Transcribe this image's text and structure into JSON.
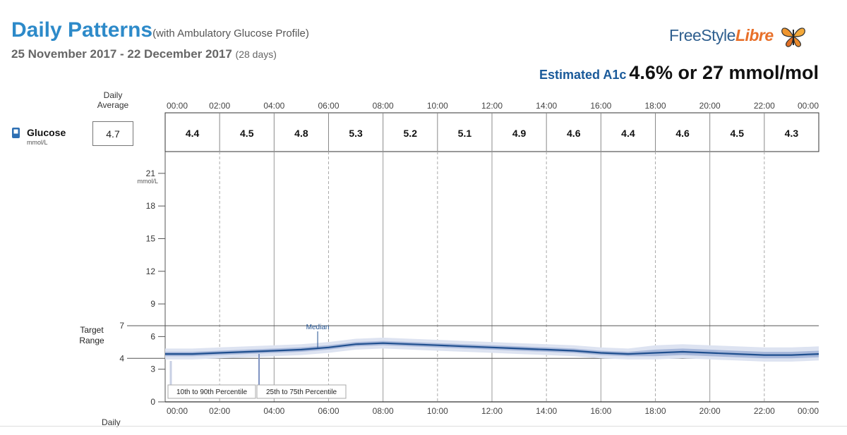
{
  "header": {
    "title": "Daily Patterns",
    "subtitle": "(with Ambulatory Glucose Profile)",
    "date_range": "25 November 2017 - 22 December 2017",
    "days": "(28 days)",
    "brand_main": "FreeStyle",
    "brand_accent": "Libre",
    "a1c_label": "Estimated A1c",
    "a1c_value": "4.6% or 27 mmol/mol"
  },
  "summary": {
    "daily_average_header": "Daily Average",
    "glucose_label": "Glucose",
    "glucose_unit": "mmol/L",
    "daily_average": "4.7",
    "target_range_label": "Target Range",
    "footer_daily": "Daily"
  },
  "colors": {
    "title": "#2d8ac9",
    "median": "#1f4f8f",
    "band_inner": "#a9b9db",
    "band_outer": "#dde3f1",
    "brand": "#2f5f8f",
    "brand_accent": "#e8702a"
  },
  "chart_data": {
    "type": "area",
    "x_ticks": [
      "00:00",
      "02:00",
      "04:00",
      "06:00",
      "08:00",
      "10:00",
      "12:00",
      "14:00",
      "16:00",
      "18:00",
      "20:00",
      "22:00",
      "00:00"
    ],
    "hourly_averages": [
      "4.4",
      "4.5",
      "4.8",
      "5.3",
      "5.2",
      "5.1",
      "4.9",
      "4.6",
      "4.4",
      "4.6",
      "4.5",
      "4.3"
    ],
    "y_ticks": [
      0,
      3,
      4,
      6,
      7,
      9,
      12,
      15,
      18,
      21
    ],
    "ylim": [
      0,
      23
    ],
    "y_unit": "mmol/L",
    "target_range": [
      4,
      7
    ],
    "x_hours": [
      0,
      1,
      2,
      3,
      4,
      5,
      6,
      7,
      8,
      9,
      10,
      11,
      12,
      13,
      14,
      15,
      16,
      17,
      18,
      19,
      20,
      21,
      22,
      23,
      24
    ],
    "series": [
      {
        "name": "Median",
        "values": [
          4.4,
          4.4,
          4.5,
          4.6,
          4.7,
          4.8,
          5.0,
          5.3,
          5.4,
          5.3,
          5.2,
          5.1,
          5.0,
          4.9,
          4.8,
          4.7,
          4.5,
          4.4,
          4.5,
          4.6,
          4.5,
          4.4,
          4.3,
          4.3,
          4.4
        ]
      }
    ],
    "band_25_75": {
      "low": [
        4.2,
        4.2,
        4.3,
        4.4,
        4.5,
        4.6,
        4.8,
        5.1,
        5.2,
        5.1,
        5.0,
        4.9,
        4.8,
        4.7,
        4.6,
        4.5,
        4.3,
        4.2,
        4.2,
        4.3,
        4.2,
        4.1,
        4.0,
        4.0,
        4.1
      ],
      "high": [
        4.6,
        4.6,
        4.7,
        4.8,
        4.9,
        5.0,
        5.2,
        5.5,
        5.6,
        5.5,
        5.4,
        5.3,
        5.2,
        5.1,
        5.0,
        4.9,
        4.7,
        4.6,
        4.8,
        4.9,
        4.8,
        4.7,
        4.6,
        4.6,
        4.7
      ]
    },
    "band_10_90": {
      "low": [
        3.9,
        3.9,
        4.0,
        4.1,
        4.2,
        4.3,
        4.5,
        4.8,
        4.9,
        4.8,
        4.7,
        4.6,
        4.5,
        4.4,
        4.3,
        4.2,
        4.0,
        3.9,
        3.9,
        4.0,
        3.9,
        3.8,
        3.7,
        3.7,
        3.8
      ],
      "high": [
        4.9,
        4.9,
        5.0,
        5.1,
        5.2,
        5.3,
        5.5,
        5.8,
        5.9,
        5.8,
        5.7,
        5.6,
        5.5,
        5.4,
        5.3,
        5.2,
        5.0,
        4.9,
        5.2,
        5.3,
        5.2,
        5.1,
        5.0,
        5.0,
        5.1
      ]
    },
    "annotations": {
      "median": "Median",
      "p10_90": "10th to 90th Percentile",
      "p25_75": "25th to 75th Percentile"
    }
  }
}
